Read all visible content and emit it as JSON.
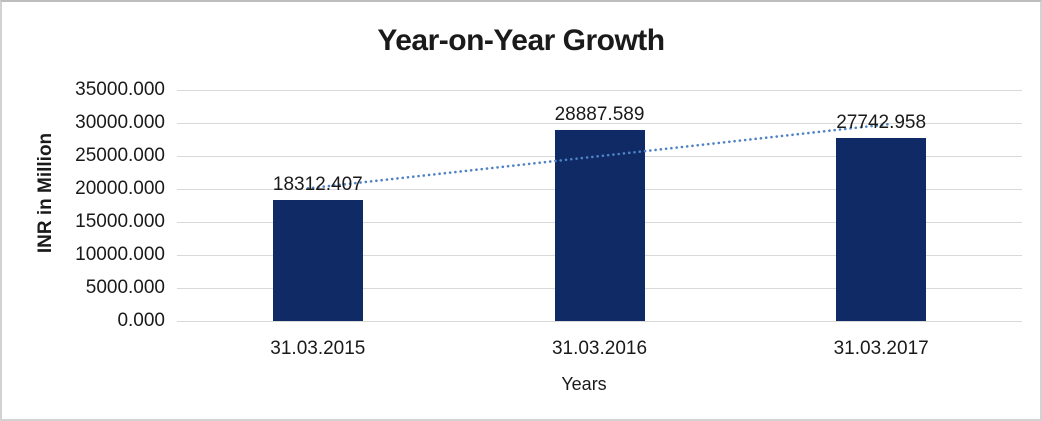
{
  "chart_data": {
    "type": "bar",
    "title": "Year-on-Year Growth",
    "xlabel": "Years",
    "ylabel": "INR in Million",
    "categories": [
      "31.03.2015",
      "31.03.2016",
      "31.03.2017"
    ],
    "values": [
      18312.407,
      28887.589,
      27742.958
    ],
    "data_labels": [
      "18312.407",
      "28887.589",
      "27742.958"
    ],
    "ylim": [
      0,
      35000
    ],
    "ytick_step": 5000,
    "ytick_labels": [
      "0.000",
      "5000.000",
      "10000.000",
      "15000.000",
      "20000.000",
      "25000.000",
      "30000.000",
      "35000.000"
    ],
    "grid": true,
    "legend": "none",
    "bar_color": "#0f2a64",
    "gridline_color": "#d9d9d9",
    "text_color": "#1a1a1a",
    "trendline": {
      "type": "linear",
      "style": "dotted",
      "color": "#4e82c4"
    }
  }
}
